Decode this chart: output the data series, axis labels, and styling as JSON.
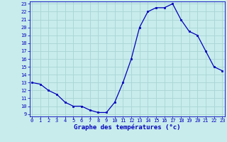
{
  "hours": [
    0,
    1,
    2,
    3,
    4,
    5,
    6,
    7,
    8,
    9,
    10,
    11,
    12,
    13,
    14,
    15,
    16,
    17,
    18,
    19,
    20,
    21,
    22,
    23
  ],
  "temps": [
    13.0,
    12.8,
    12.0,
    11.5,
    10.5,
    10.0,
    10.0,
    9.5,
    9.2,
    9.2,
    10.5,
    13.0,
    16.0,
    20.0,
    22.0,
    22.5,
    22.5,
    23.0,
    21.0,
    19.5,
    19.0,
    17.0,
    15.0,
    14.5
  ],
  "line_color": "#0000bb",
  "marker_color": "#0000bb",
  "bg_color": "#c8ecec",
  "grid_color": "#aad4d4",
  "xlabel": "Graphe des températures (°c)",
  "ylim_min": 9,
  "ylim_max": 23,
  "xlim_min": 0,
  "xlim_max": 23,
  "yticks": [
    9,
    10,
    11,
    12,
    13,
    14,
    15,
    16,
    17,
    18,
    19,
    20,
    21,
    22,
    23
  ],
  "xticks": [
    0,
    1,
    2,
    3,
    4,
    5,
    6,
    7,
    8,
    9,
    10,
    11,
    12,
    13,
    14,
    15,
    16,
    17,
    18,
    19,
    20,
    21,
    22,
    23
  ],
  "tick_label_color": "#0000bb",
  "xlabel_color": "#0000bb",
  "tick_fontsize": 5.0,
  "xlabel_fontsize": 6.5
}
